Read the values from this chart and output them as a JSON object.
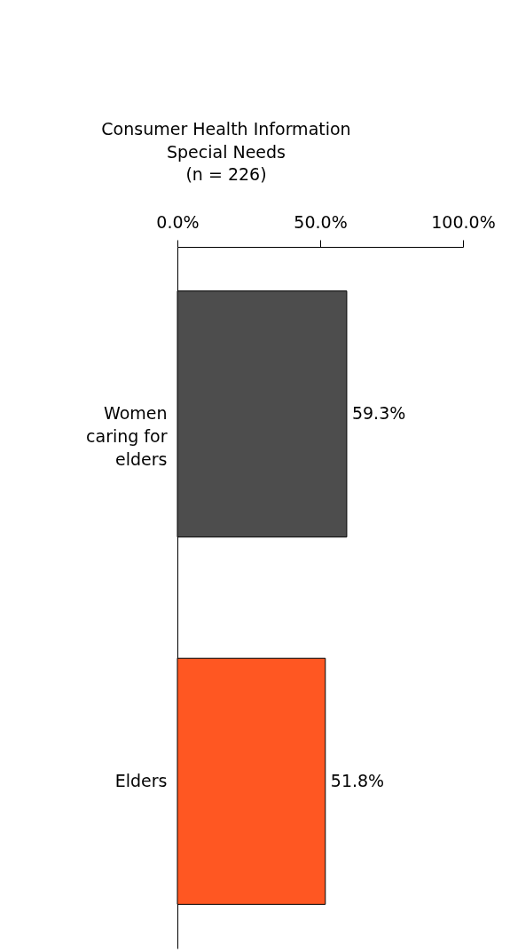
{
  "chart_data": {
    "type": "bar",
    "orientation": "horizontal",
    "title": "Consumer Health Information Special Needs",
    "subtitle": "(n = 226)",
    "categories": [
      "Women caring for elders",
      "Elders"
    ],
    "values": [
      59.3,
      51.8
    ],
    "colors": [
      "#4d4d4d",
      "#ff5722"
    ],
    "value_labels": [
      "59.3%",
      "51.8%"
    ],
    "xlim": [
      0,
      100
    ],
    "xticks": [
      {
        "value": 0,
        "label": "0.0%"
      },
      {
        "value": 50,
        "label": "50.0%"
      },
      {
        "value": 100,
        "label": "100.0%"
      }
    ],
    "grid": false
  }
}
